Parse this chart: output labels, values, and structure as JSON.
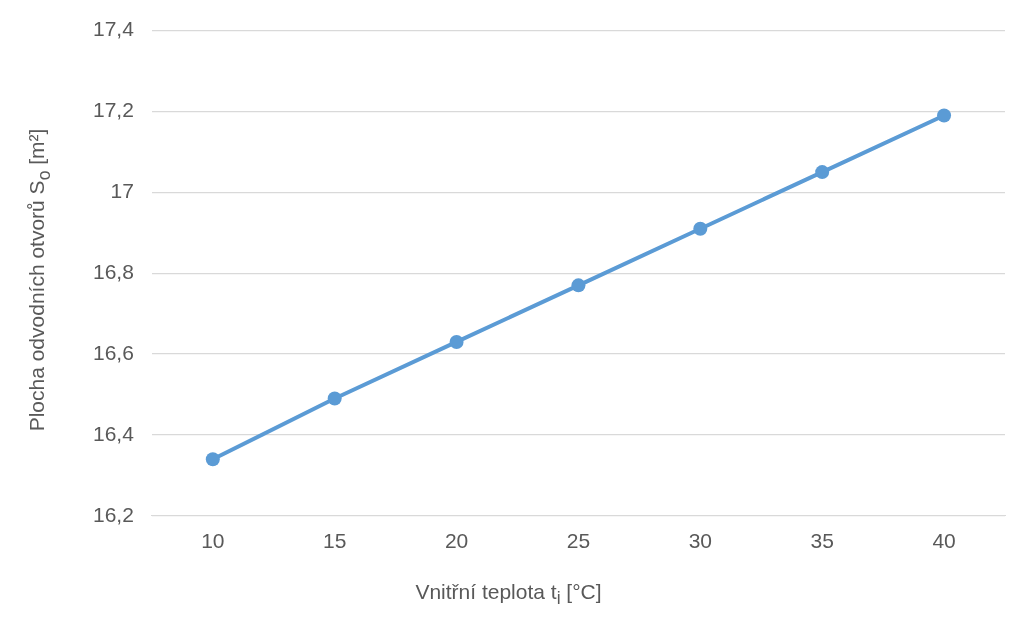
{
  "chart_data": {
    "type": "line",
    "xlabel": "Vnitřní teplota t$_{i}$ [°C]",
    "ylabel": "Plocha odvodních otvorů S$_{o}$ [m²]",
    "categories": [
      "10",
      "15",
      "20",
      "25",
      "30",
      "35",
      "40"
    ],
    "series": [
      {
        "color": "#5b9bd5",
        "values": [
          16.34,
          16.49,
          16.63,
          16.77,
          16.91,
          17.05,
          17.19
        ]
      }
    ],
    "ylim": [
      16.2,
      17.4
    ],
    "yticks": [
      {
        "value": 16.2,
        "label": "16,2"
      },
      {
        "value": 16.4,
        "label": "16,4"
      },
      {
        "value": 16.6,
        "label": "16,6"
      },
      {
        "value": 16.8,
        "label": "16,8"
      },
      17,
      {
        "value": 17.2,
        "label": "17,2"
      },
      {
        "value": 17.4,
        "label": "17,4"
      }
    ],
    "grid": "y",
    "marker": "circle",
    "line_style": "solid",
    "legend": false
  }
}
